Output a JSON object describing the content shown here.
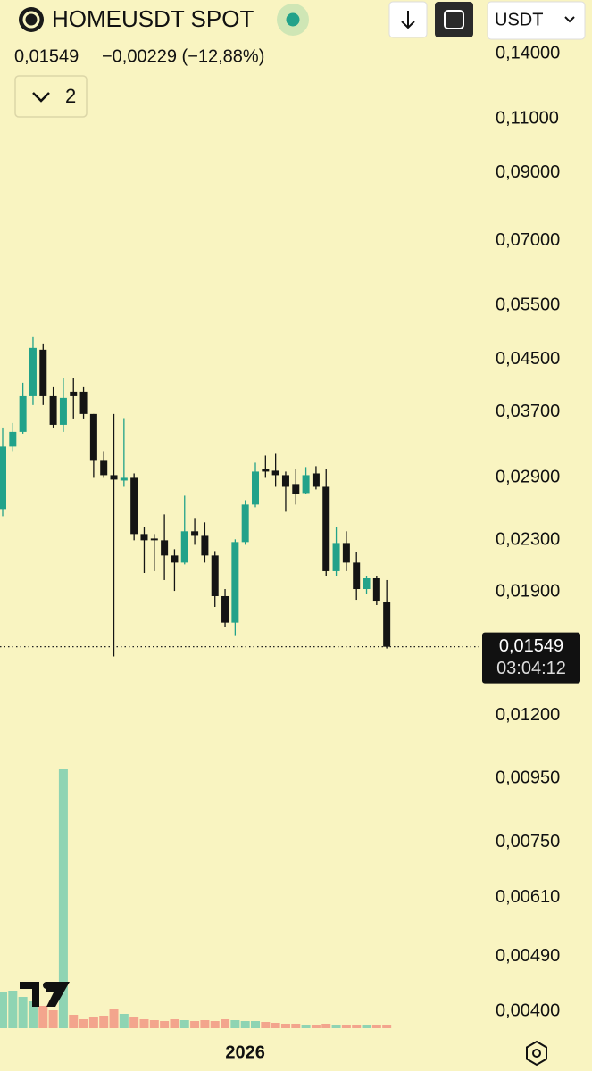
{
  "toolbar": {
    "price": "0,01549",
    "change": "−0,00229 (−12,88%)",
    "quote": "USDT",
    "indicators": "2"
  },
  "chart_data": {
    "type": "candlestick",
    "title": "HOMEUSDT SPOT",
    "log_scale": true,
    "up_color": "#22a28a",
    "down_color": "#141414",
    "categories": [
      null,
      null,
      null,
      null,
      null,
      null,
      null,
      null,
      null,
      null,
      null,
      null,
      null,
      null,
      null,
      null,
      null,
      null,
      null,
      null,
      null,
      null,
      null,
      null,
      "2026",
      null,
      null,
      null,
      null,
      null,
      null,
      null,
      null,
      null,
      null,
      null,
      null,
      null,
      null
    ],
    "open": [
      0.02583,
      0.03257,
      0.0344,
      0.03927,
      0.04667,
      0.03927,
      0.03532,
      0.03993,
      0.03993,
      0.03676,
      0.03099,
      0.02929,
      0.02871,
      0.029,
      0.02354,
      0.02315,
      0.023,
      0.02174,
      0.02117,
      0.02378,
      0.02338,
      0.02174,
      0.01869,
      0.01694,
      0.02285,
      0.02626,
      0.02998,
      0.02978,
      0.02929,
      0.02834,
      0.02741,
      0.02948,
      0.02805,
      0.02051,
      0.02277,
      0.02117,
      0.01919,
      0.01997,
      0.01826
    ],
    "high": [
      0.03497,
      0.03556,
      0.04128,
      0.04889,
      0.04776,
      0.0406,
      0.04197,
      0.04197,
      0.0406,
      0.03676,
      0.03203,
      0.03676,
      0.0362,
      0.02948,
      0.02417,
      0.02354,
      0.02532,
      0.02225,
      0.02714,
      0.02499,
      0.02458,
      0.0221,
      0.01919,
      0.02308,
      0.02669,
      0.03068,
      0.0315,
      0.03171,
      0.02968,
      0.02998,
      0.03018,
      0.03028,
      0.02998,
      0.02417,
      0.02378,
      0.02203,
      0.02017,
      0.02017,
      0.01984
    ],
    "low": [
      0.02515,
      0.03203,
      0.03417,
      0.038,
      0.038,
      0.03497,
      0.0344,
      0.03615,
      0.03615,
      0.029,
      0.029,
      0.01494,
      0.02805,
      0.023,
      0.02037,
      0.02051,
      0.01984,
      0.01906,
      0.02103,
      0.02262,
      0.02117,
      0.01796,
      0.01666,
      0.01612,
      0.02262,
      0.026,
      0.029,
      0.02805,
      0.02557,
      0.02626,
      0.02732,
      0.02778,
      0.02017,
      0.02017,
      0.02051,
      0.01844,
      0.01887,
      0.01808,
      0.01539
    ],
    "close": [
      0.03257,
      0.0344,
      0.03927,
      0.04698,
      0.03927,
      0.03532,
      0.03902,
      0.03927,
      0.03676,
      0.03099,
      0.02929,
      0.02881,
      0.029,
      0.02354,
      0.023,
      0.023,
      0.02174,
      0.02117,
      0.02378,
      0.02338,
      0.02174,
      0.01869,
      0.01694,
      0.02285,
      0.02626,
      0.02968,
      0.02968,
      0.02929,
      0.02805,
      0.02732,
      0.02929,
      0.02805,
      0.02051,
      0.02277,
      0.02117,
      0.01919,
      0.01997,
      0.01838,
      0.01549
    ],
    "volume": {
      "up_color": "#8fd4b3",
      "down_color": "#f3a58d",
      "values": [
        40,
        42,
        35,
        30,
        25,
        20,
        290,
        15,
        10,
        12,
        14,
        22,
        16,
        12,
        10,
        9,
        8,
        10,
        9,
        8,
        9,
        8,
        10,
        9,
        8,
        8,
        7,
        6,
        5,
        5,
        4,
        4,
        5,
        4,
        3,
        3,
        3,
        3,
        4
      ]
    },
    "ylim": [
      0.00366,
      0.171
    ],
    "yticks": [
      {
        "value": 0.14,
        "label": "0,14000"
      },
      {
        "value": 0.11,
        "label": "0,11000"
      },
      {
        "value": 0.09,
        "label": "0,09000"
      },
      {
        "value": 0.07,
        "label": "0,07000"
      },
      {
        "value": 0.055,
        "label": "0,05500"
      },
      {
        "value": 0.045,
        "label": "0,04500"
      },
      {
        "value": 0.037,
        "label": "0,03700"
      },
      {
        "value": 0.029,
        "label": "0,02900"
      },
      {
        "value": 0.023,
        "label": "0,02300"
      },
      {
        "value": 0.019,
        "label": "0,01900"
      },
      {
        "value": 0.012,
        "label": "0,01200"
      },
      {
        "value": 0.0095,
        "label": "0,00950"
      },
      {
        "value": 0.0075,
        "label": "0,00750"
      },
      {
        "value": 0.0061,
        "label": "0,00610"
      },
      {
        "value": 0.0049,
        "label": "0,00490"
      },
      {
        "value": 0.004,
        "label": "0,00400"
      }
    ],
    "last_price": {
      "value": 0.01549,
      "label": "0,01549",
      "countdown": "03:04:12"
    }
  }
}
